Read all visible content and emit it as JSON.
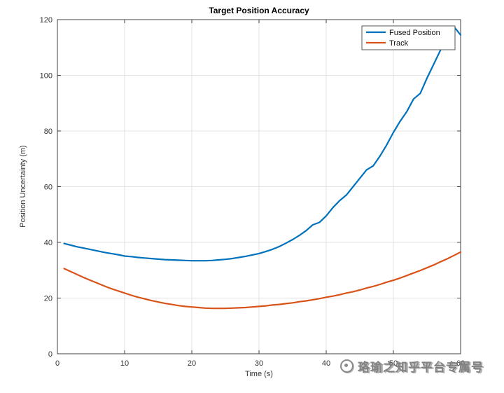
{
  "figure": {
    "background": "#ffffff"
  },
  "watermark": {
    "text": "珞瑜之知乎平台专属号",
    "icon": "circular-logo"
  },
  "chart_data": {
    "type": "line",
    "title": "Target Position Accuracy",
    "xlabel": "Time (s)",
    "ylabel": "Position Uncertainty (m)",
    "xlim": [
      0,
      60
    ],
    "ylim": [
      0,
      120
    ],
    "x_ticks": [
      0,
      10,
      20,
      30,
      40,
      50,
      60
    ],
    "y_ticks": [
      0,
      20,
      40,
      60,
      80,
      100,
      120
    ],
    "grid": true,
    "grid_color": "#e3e3e3",
    "axis_color": "#404040",
    "legend": {
      "position": "top-right",
      "entries": [
        "Fused Position",
        "Track"
      ]
    },
    "x": [
      1,
      2,
      3,
      4,
      5,
      6,
      7,
      8,
      9,
      10,
      11,
      12,
      13,
      14,
      15,
      16,
      17,
      18,
      19,
      20,
      21,
      22,
      23,
      24,
      25,
      26,
      27,
      28,
      29,
      30,
      31,
      32,
      33,
      34,
      35,
      36,
      37,
      38,
      39,
      40,
      41,
      42,
      43,
      44,
      45,
      46,
      47,
      48,
      49,
      50,
      51,
      52,
      53,
      54,
      55,
      56,
      57,
      58,
      59,
      60
    ],
    "series": [
      {
        "name": "Fused Position",
        "color": "#0072BD",
        "values": [
          39.6,
          39.0,
          38.4,
          37.9,
          37.4,
          36.9,
          36.4,
          36.0,
          35.6,
          35.1,
          34.9,
          34.6,
          34.4,
          34.2,
          34.0,
          33.8,
          33.7,
          33.6,
          33.5,
          33.4,
          33.4,
          33.4,
          33.5,
          33.7,
          33.9,
          34.2,
          34.6,
          35.0,
          35.5,
          36.0,
          36.7,
          37.5,
          38.5,
          39.7,
          41.0,
          42.5,
          44.2,
          46.3,
          47.2,
          49.5,
          52.5,
          55.0,
          57.0,
          60.0,
          63.0,
          66.0,
          67.5,
          71.0,
          75.0,
          79.5,
          83.5,
          87.0,
          91.5,
          93.5,
          99.0,
          104.0,
          109.0,
          113.5,
          117.5,
          114.5
        ]
      },
      {
        "name": "Track",
        "color": "#D95319",
        "values": [
          30.6,
          29.5,
          28.4,
          27.3,
          26.3,
          25.3,
          24.3,
          23.4,
          22.6,
          21.8,
          21.0,
          20.3,
          19.7,
          19.1,
          18.6,
          18.1,
          17.7,
          17.3,
          17.0,
          16.8,
          16.6,
          16.4,
          16.3,
          16.3,
          16.3,
          16.4,
          16.5,
          16.6,
          16.8,
          17.0,
          17.2,
          17.5,
          17.7,
          18.0,
          18.3,
          18.7,
          19.0,
          19.4,
          19.8,
          20.3,
          20.7,
          21.2,
          21.8,
          22.3,
          22.9,
          23.6,
          24.2,
          24.9,
          25.7,
          26.4,
          27.2,
          28.1,
          29.0,
          29.9,
          30.9,
          31.9,
          33.0,
          34.1,
          35.3,
          36.5
        ]
      }
    ]
  }
}
